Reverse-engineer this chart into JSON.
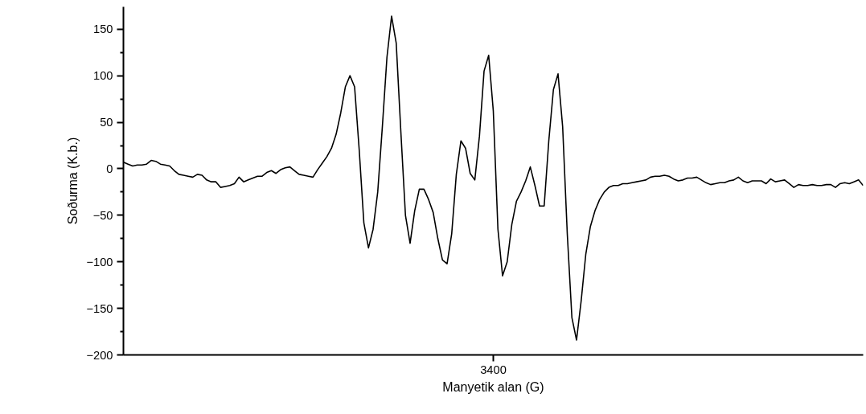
{
  "chart_data": {
    "type": "line",
    "xlabel": "Manyetik alan (G)",
    "ylabel": "Soðurma (K.b.)",
    "categories": [
      null,
      null,
      null,
      null,
      null,
      null,
      null,
      null,
      null,
      null,
      null,
      null,
      null,
      null,
      null,
      null,
      null,
      null,
      null,
      null,
      null,
      null,
      null,
      null,
      null,
      null,
      null,
      null,
      null,
      null,
      null,
      null,
      null,
      null,
      null,
      null,
      null,
      null,
      null,
      null,
      null,
      null,
      null,
      null,
      null,
      null,
      null,
      null,
      null,
      null,
      null,
      null,
      null,
      null,
      null,
      null,
      null,
      null,
      null,
      null,
      null,
      null,
      null,
      null,
      null,
      null,
      null,
      null,
      null,
      null,
      null,
      null,
      null,
      null,
      null,
      null,
      null,
      null,
      null,
      null,
      "3400",
      null,
      null,
      null,
      null,
      null,
      null,
      null,
      null,
      null,
      null,
      null,
      null,
      null,
      null,
      null,
      null,
      null,
      null,
      null,
      null,
      null,
      null,
      null,
      null,
      null,
      null,
      null,
      null,
      null,
      null,
      null,
      null,
      null,
      null,
      null,
      null,
      null,
      null,
      null,
      null,
      null,
      null,
      null,
      null,
      null,
      null,
      null,
      null,
      null,
      null,
      null,
      null,
      null,
      null,
      null,
      null,
      null,
      null,
      null,
      null,
      null,
      null,
      null,
      null,
      null,
      null,
      null,
      null,
      null,
      null,
      null,
      null,
      null,
      null,
      null,
      null,
      null,
      null,
      null,
      null
    ],
    "series": [
      {
        "color": "#000000",
        "values": [
          7,
          5,
          3,
          4,
          4,
          5,
          9,
          8,
          5,
          4,
          3,
          -2,
          -6,
          -7,
          -8,
          -9,
          -6,
          -7,
          -12,
          -14,
          -14,
          -20,
          -19,
          -18,
          -16,
          -9,
          -14,
          -12,
          -10,
          -8,
          -8,
          -4,
          -2,
          -5,
          -1,
          1,
          2,
          -2,
          -6,
          -7,
          -8,
          -9,
          -1,
          6,
          13,
          22,
          37,
          60,
          88,
          100,
          88,
          20,
          -58,
          -85,
          -65,
          -25,
          45,
          120,
          164,
          135,
          40,
          -50,
          -80,
          -45,
          -22,
          -22,
          -33,
          -47,
          -75,
          -98,
          -102,
          -70,
          -6,
          30,
          22,
          -5,
          -12,
          35,
          105,
          122,
          62,
          -65,
          -115,
          -100,
          -60,
          -35,
          -25,
          -13,
          2,
          -18,
          -40,
          -40,
          30,
          85,
          102,
          45,
          -70,
          -160,
          -184,
          -142,
          -92,
          -62,
          -45,
          -33,
          -25,
          -20,
          -18,
          -18,
          -16,
          -16,
          -15,
          -14,
          -13,
          -12,
          -9,
          -8,
          -8,
          -7,
          -8,
          -11,
          -13,
          -12,
          -10,
          -10,
          -9,
          -12,
          -15,
          -17,
          -16,
          -15,
          -15,
          -13,
          -12,
          -9,
          -13,
          -15,
          -13,
          -13,
          -13,
          -16,
          -11,
          -14,
          -13,
          -12,
          -16,
          -20,
          -17,
          -18,
          -18,
          -17,
          -18,
          -18,
          -17,
          -17,
          -20,
          -16,
          -15,
          -16,
          -14,
          -12,
          -18
        ]
      }
    ],
    "ylim": [
      -200,
      174
    ],
    "yticks": [
      -200,
      -150,
      -100,
      -50,
      0,
      50,
      100,
      150
    ],
    "grid": false,
    "line_style": "solid",
    "marker": "none"
  }
}
